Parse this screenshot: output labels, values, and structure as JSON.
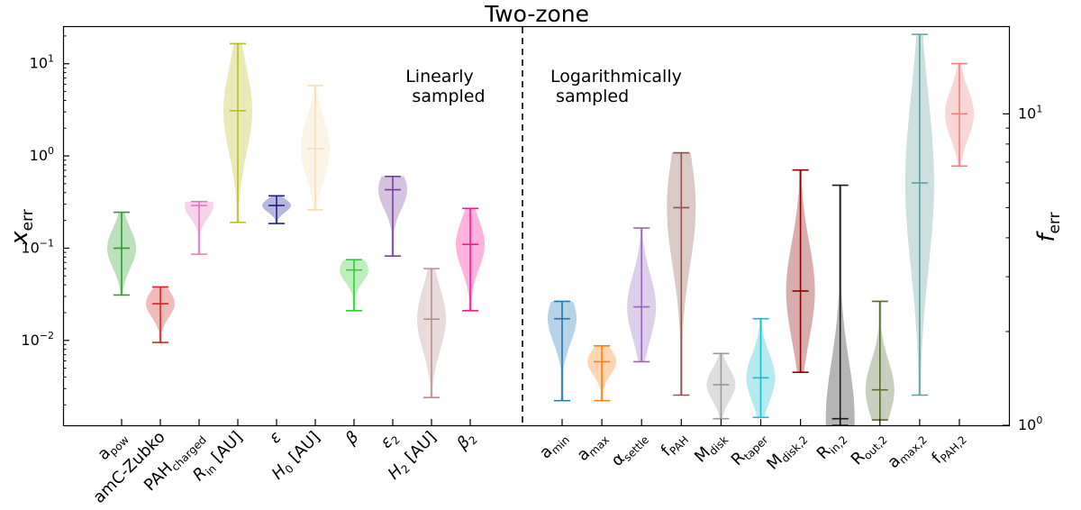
{
  "chart_data": {
    "type": "violin",
    "title": "Two-zone",
    "ylabel_left": {
      "main": "x",
      "sub": "err"
    },
    "ylabel_right": {
      "main": "f",
      "sub": "err"
    },
    "left_axis": {
      "scale": "log",
      "ylim": [
        0.0012,
        25
      ],
      "ticks": [
        {
          "value": 0.01,
          "base": "10",
          "exp": "−2"
        },
        {
          "value": 0.1,
          "base": "10",
          "exp": "−1"
        },
        {
          "value": 1,
          "base": "10",
          "exp": "0"
        },
        {
          "value": 10,
          "base": "10",
          "exp": "1"
        }
      ]
    },
    "right_axis": {
      "scale": "log",
      "ylim": [
        1,
        19
      ],
      "ticks": [
        {
          "value": 1,
          "base": "10",
          "exp": "0"
        },
        {
          "value": 10,
          "base": "10",
          "exp": "1"
        }
      ]
    },
    "annotations": {
      "linear": [
        "Linearly",
        "sampled"
      ],
      "log": [
        "Logarithmically",
        " sampled"
      ]
    },
    "linear_params": [
      {
        "parts": [
          [
            "a",
            ""
          ],
          [
            "pow",
            "sub"
          ]
        ],
        "color": "#2ca02c",
        "min": 0.031,
        "max": 0.245,
        "median": 0.1
      },
      {
        "parts": [
          [
            "amC-Zubko",
            ""
          ]
        ],
        "color": "#d62728",
        "min": 0.0095,
        "max": 0.038,
        "median": 0.025
      },
      {
        "parts": [
          [
            "PAH",
            ""
          ],
          [
            "charged",
            "sub"
          ]
        ],
        "color": "#e377c2",
        "min": 0.086,
        "max": 0.32,
        "median": 0.29
      },
      {
        "parts": [
          [
            "R",
            "i"
          ],
          [
            "in",
            "sub"
          ],
          [
            " [AU]",
            ""
          ]
        ],
        "color": "#bcbd22",
        "min": 0.19,
        "max": 16.5,
        "median": 3.1
      },
      {
        "parts": [
          [
            "ε",
            "i"
          ]
        ],
        "color": "#1f1f8f",
        "min": 0.185,
        "max": 0.37,
        "median": 0.29
      },
      {
        "parts": [
          [
            "H",
            "i"
          ],
          [
            "0",
            "sub"
          ],
          [
            " [AU]",
            ""
          ]
        ],
        "color": "#f5deb3",
        "min": 0.26,
        "max": 5.8,
        "median": 1.2
      },
      {
        "parts": [
          [
            "β",
            "i"
          ]
        ],
        "color": "#32cd32",
        "min": 0.021,
        "max": 0.075,
        "median": 0.058
      },
      {
        "parts": [
          [
            "ε",
            "i"
          ],
          [
            "2",
            "sub"
          ]
        ],
        "color": "#7b3f9e",
        "min": 0.082,
        "max": 0.6,
        "median": 0.43
      },
      {
        "parts": [
          [
            "H",
            "i"
          ],
          [
            "2",
            "sub"
          ],
          [
            " [AU]",
            ""
          ]
        ],
        "color": "#bc8f8f",
        "min": 0.0024,
        "max": 0.06,
        "median": 0.017
      },
      {
        "parts": [
          [
            "β",
            "i"
          ],
          [
            "2",
            "sub"
          ]
        ],
        "color": "#ff1493",
        "min": 0.021,
        "max": 0.27,
        "median": 0.11
      }
    ],
    "log_params": [
      {
        "parts": [
          [
            "a",
            ""
          ],
          [
            "min",
            "sub"
          ]
        ],
        "color": "#1f77b4",
        "min": 1.2,
        "max": 2.5,
        "median": 2.2
      },
      {
        "parts": [
          [
            "a",
            ""
          ],
          [
            "max",
            "sub"
          ]
        ],
        "color": "#ff7f0e",
        "min": 1.2,
        "max": 1.8,
        "median": 1.6
      },
      {
        "parts": [
          [
            "α",
            ""
          ],
          [
            "settle",
            "sub"
          ]
        ],
        "color": "#9467bd",
        "min": 1.6,
        "max": 4.3,
        "median": 2.4
      },
      {
        "parts": [
          [
            "f",
            ""
          ],
          [
            "PAH",
            "sub"
          ]
        ],
        "color": "#8c564b",
        "min": 1.25,
        "max": 7.5,
        "median": 5.0
      },
      {
        "parts": [
          [
            "M",
            ""
          ],
          [
            "disk",
            "sub"
          ]
        ],
        "color": "#999999",
        "min": 1.05,
        "max": 1.7,
        "median": 1.35
      },
      {
        "parts": [
          [
            "R",
            ""
          ],
          [
            "taper",
            "sub"
          ]
        ],
        "color": "#17becf",
        "min": 1.06,
        "max": 2.2,
        "median": 1.42
      },
      {
        "parts": [
          [
            "M",
            ""
          ],
          [
            "disk,2",
            "sub"
          ]
        ],
        "color": "#8b0000",
        "min": 1.48,
        "max": 6.6,
        "median": 2.7
      },
      {
        "parts": [
          [
            "R",
            ""
          ],
          [
            "in,2",
            "sub"
          ]
        ],
        "color": "#1a1a1a",
        "min": 1.0,
        "max": 5.9,
        "median": 1.05
      },
      {
        "parts": [
          [
            "R",
            ""
          ],
          [
            "out,2",
            "sub"
          ]
        ],
        "color": "#556b2f",
        "min": 1.04,
        "max": 2.5,
        "median": 1.3
      },
      {
        "parts": [
          [
            "a",
            ""
          ],
          [
            "max,2",
            "sub"
          ]
        ],
        "color": "#5f9ea0",
        "min": 1.25,
        "max": 18.0,
        "median": 6.0
      },
      {
        "parts": [
          [
            "f",
            ""
          ],
          [
            "PAH,2",
            "sub"
          ]
        ],
        "color": "#f08080",
        "min": 6.8,
        "max": 14.5,
        "median": 10.0
      }
    ]
  }
}
